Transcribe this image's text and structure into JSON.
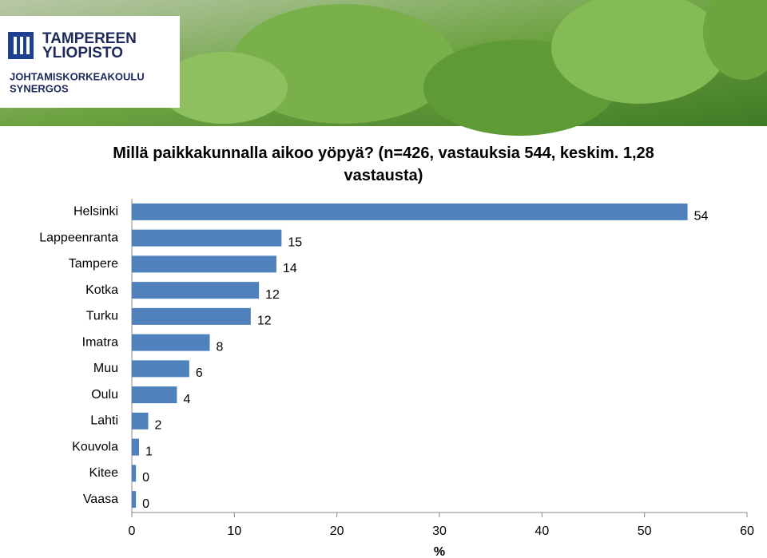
{
  "header": {
    "logo_line_1": "TAMPEREEN",
    "logo_line_2": "YLIOPISTO",
    "logo_line_3": "JOHTAMISKORKEAKOULU",
    "logo_line_4": "SYNERGOS"
  },
  "chart_data": {
    "type": "hbar",
    "title": "Millä paikkakunnalla aikoo yöpyä? (n=426, vastauksia 544, keskim. 1,28 vastausta)",
    "x_label": "%",
    "categories": [
      "Helsinki",
      "Lappeenranta",
      "Tampere",
      "Kotka",
      "Turku",
      "Imatra",
      "Muu",
      "Oulu",
      "Lahti",
      "Kouvola",
      "Kitee",
      "Vaasa"
    ],
    "values": [
      54.2,
      14.6,
      14.1,
      12.4,
      11.6,
      7.6,
      5.6,
      4.4,
      1.6,
      0.7,
      0.4,
      0.4
    ],
    "value_labels": [
      "54",
      "15",
      "14",
      "12",
      "12",
      "8",
      "6",
      "4",
      "2",
      "1",
      "0",
      "0"
    ],
    "color": "#4f81bd",
    "xlim": [
      0,
      60
    ],
    "xticks": [
      0,
      10,
      20,
      30,
      40,
      50,
      60
    ]
  }
}
